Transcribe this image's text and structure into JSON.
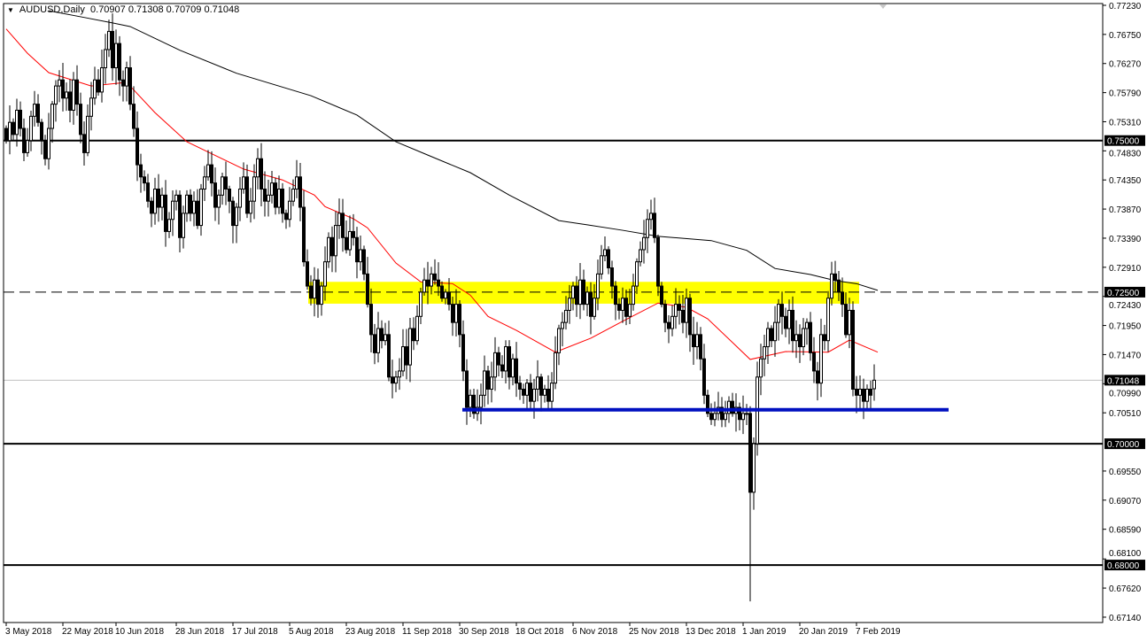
{
  "header": {
    "symbol": "AUDUSD,Daily",
    "ohlc": "0.70907 0.71308 0.70709 0.71048",
    "menu_icon": "triangle-down-icon"
  },
  "colors": {
    "background": "#ffffff",
    "bull_candle": "#ffffff",
    "bear_candle": "#000000",
    "ma_fast": "#ff0000",
    "ma_slow": "#000000",
    "zone": "#ffff00",
    "support_line": "#0010c0",
    "bid_line": "#c0c0c0",
    "axis_text": "#000000"
  },
  "chart_data": {
    "type": "candlestick",
    "symbol": "AUDUSD",
    "timeframe": "Daily",
    "ylim": [
      0.67,
      0.773
    ],
    "grid": false,
    "price_ticks": [
      "0.77230",
      "0.76750",
      "0.76270",
      "0.75790",
      "0.75310",
      "0.74830",
      "0.74350",
      "0.73870",
      "0.73390",
      "0.72910",
      "0.72430",
      "0.71950",
      "0.71470",
      "0.70990",
      "0.70510",
      "0.69550",
      "0.69070",
      "0.68590",
      "0.68100",
      "0.67620",
      "0.67140"
    ],
    "date_ticks": [
      {
        "bar": 0,
        "label": "3 May 2018"
      },
      {
        "bar": 16,
        "label": "22 May 2018"
      },
      {
        "bar": 31,
        "label": "10 Jun 2018"
      },
      {
        "bar": 48,
        "label": "28 Jun 2018"
      },
      {
        "bar": 64,
        "label": "17 Jul 2018"
      },
      {
        "bar": 80,
        "label": "5 Aug 2018"
      },
      {
        "bar": 96,
        "label": "23 Aug 2018"
      },
      {
        "bar": 112,
        "label": "11 Sep 2018"
      },
      {
        "bar": 128,
        "label": "30 Sep 2018"
      },
      {
        "bar": 144,
        "label": "18 Oct 2018"
      },
      {
        "bar": 160,
        "label": "6 Nov 2018"
      },
      {
        "bar": 176,
        "label": "25 Nov 2018"
      },
      {
        "bar": 192,
        "label": "13 Dec 2018"
      },
      {
        "bar": 208,
        "label": "1 Jan 2019"
      },
      {
        "bar": 224,
        "label": "20 Jan 2019"
      },
      {
        "bar": 240,
        "label": "7 Feb 2019"
      }
    ],
    "closes": [
      0.75,
      0.753,
      0.751,
      0.755,
      0.752,
      0.748,
      0.75,
      0.754,
      0.756,
      0.753,
      0.75,
      0.747,
      0.752,
      0.756,
      0.759,
      0.76,
      0.757,
      0.758,
      0.755,
      0.76,
      0.756,
      0.751,
      0.748,
      0.754,
      0.757,
      0.76,
      0.758,
      0.762,
      0.765,
      0.768,
      0.762,
      0.766,
      0.76,
      0.759,
      0.762,
      0.756,
      0.752,
      0.746,
      0.744,
      0.743,
      0.74,
      0.738,
      0.742,
      0.739,
      0.741,
      0.735,
      0.737,
      0.74,
      0.741,
      0.734,
      0.738,
      0.741,
      0.738,
      0.74,
      0.736,
      0.742,
      0.744,
      0.746,
      0.743,
      0.739,
      0.741,
      0.744,
      0.742,
      0.74,
      0.736,
      0.739,
      0.742,
      0.744,
      0.738,
      0.74,
      0.744,
      0.747,
      0.742,
      0.74,
      0.741,
      0.743,
      0.739,
      0.742,
      0.738,
      0.737,
      0.74,
      0.742,
      0.744,
      0.739,
      0.73,
      0.726,
      0.724,
      0.727,
      0.723,
      0.726,
      0.73,
      0.734,
      0.731,
      0.736,
      0.738,
      0.734,
      0.732,
      0.735,
      0.734,
      0.73,
      0.732,
      0.728,
      0.723,
      0.718,
      0.715,
      0.719,
      0.717,
      0.718,
      0.711,
      0.71,
      0.711,
      0.712,
      0.716,
      0.713,
      0.719,
      0.717,
      0.721,
      0.725,
      0.727,
      0.726,
      0.728,
      0.727,
      0.726,
      0.724,
      0.725,
      0.723,
      0.72,
      0.723,
      0.718,
      0.712,
      0.706,
      0.708,
      0.705,
      0.706,
      0.708,
      0.712,
      0.709,
      0.711,
      0.715,
      0.713,
      0.712,
      0.716,
      0.711,
      0.714,
      0.71,
      0.709,
      0.708,
      0.71,
      0.707,
      0.709,
      0.711,
      0.708,
      0.709,
      0.707,
      0.71,
      0.715,
      0.719,
      0.72,
      0.722,
      0.724,
      0.726,
      0.723,
      0.727,
      0.723,
      0.725,
      0.721,
      0.724,
      0.728,
      0.731,
      0.732,
      0.729,
      0.726,
      0.723,
      0.722,
      0.724,
      0.721,
      0.723,
      0.726,
      0.73,
      0.732,
      0.734,
      0.737,
      0.738,
      0.734,
      0.726,
      0.723,
      0.72,
      0.719,
      0.721,
      0.723,
      0.722,
      0.72,
      0.724,
      0.718,
      0.716,
      0.718,
      0.714,
      0.708,
      0.705,
      0.704,
      0.705,
      0.706,
      0.704,
      0.705,
      0.707,
      0.705,
      0.706,
      0.704,
      0.705,
      0.705,
      0.692,
      0.7,
      0.711,
      0.714,
      0.716,
      0.719,
      0.717,
      0.72,
      0.723,
      0.721,
      0.719,
      0.722,
      0.717,
      0.718,
      0.716,
      0.719,
      0.72,
      0.715,
      0.712,
      0.71,
      0.718,
      0.717,
      0.724,
      0.728,
      0.727,
      0.725,
      0.723,
      0.718,
      0.722,
      0.709,
      0.708,
      0.709,
      0.707,
      0.709,
      0.708,
      0.7105
    ],
    "last_bar": {
      "open": 0.70907,
      "high": 0.71308,
      "low": 0.70709,
      "close": 0.71048
    },
    "flash_crash": {
      "bar": 210,
      "low": 0.674
    },
    "ma_fast": [
      [
        0,
        0.7684
      ],
      [
        6,
        0.7644
      ],
      [
        12,
        0.7612
      ],
      [
        24,
        0.759
      ],
      [
        34,
        0.7596
      ],
      [
        42,
        0.7546
      ],
      [
        51,
        0.7498
      ],
      [
        57,
        0.7481
      ],
      [
        67,
        0.7453
      ],
      [
        78,
        0.7435
      ],
      [
        87,
        0.741
      ],
      [
        90,
        0.7391
      ],
      [
        98,
        0.7371
      ],
      [
        102,
        0.7356
      ],
      [
        110,
        0.7298
      ],
      [
        117,
        0.7267
      ],
      [
        126,
        0.7264
      ],
      [
        131,
        0.7245
      ],
      [
        136,
        0.721
      ],
      [
        144,
        0.7187
      ],
      [
        155,
        0.7151
      ],
      [
        165,
        0.7174
      ],
      [
        174,
        0.7202
      ],
      [
        184,
        0.7232
      ],
      [
        192,
        0.7225
      ],
      [
        198,
        0.7206
      ],
      [
        205,
        0.7167
      ],
      [
        210,
        0.7139
      ],
      [
        220,
        0.7152
      ],
      [
        232,
        0.7151
      ],
      [
        238,
        0.7171
      ],
      [
        246,
        0.7151
      ]
    ],
    "ma_slow": [
      [
        12,
        0.7714
      ],
      [
        22,
        0.7703
      ],
      [
        30,
        0.7694
      ],
      [
        35,
        0.7688
      ],
      [
        49,
        0.7649
      ],
      [
        65,
        0.7611
      ],
      [
        86,
        0.7574
      ],
      [
        99,
        0.7542
      ],
      [
        110,
        0.7498
      ],
      [
        119,
        0.7476
      ],
      [
        131,
        0.7447
      ],
      [
        142,
        0.741
      ],
      [
        156,
        0.7368
      ],
      [
        164,
        0.7361
      ],
      [
        174,
        0.7352
      ],
      [
        184,
        0.7342
      ],
      [
        199,
        0.7335
      ],
      [
        209,
        0.7319
      ],
      [
        217,
        0.7289
      ],
      [
        227,
        0.7279
      ],
      [
        234,
        0.7269
      ],
      [
        240,
        0.7264
      ],
      [
        246,
        0.7253
      ]
    ],
    "levels": [
      {
        "price": 0.75,
        "label": "0.75000",
        "style": "solid"
      },
      {
        "price": 0.725,
        "label": "0.72500",
        "style": "dashed"
      },
      {
        "price": 0.7,
        "label": "0.70000",
        "style": "solid"
      },
      {
        "price": 0.68,
        "label": "0.68000",
        "style": "solid"
      }
    ],
    "bid": {
      "price": 0.71048,
      "label": "0.71048"
    },
    "zone": {
      "from_bar": 86,
      "to_bar": 240,
      "top": 0.7267,
      "bottom": 0.7231
    },
    "support": {
      "from_bar": 130,
      "to_bar": 266,
      "price": 0.7056
    }
  }
}
